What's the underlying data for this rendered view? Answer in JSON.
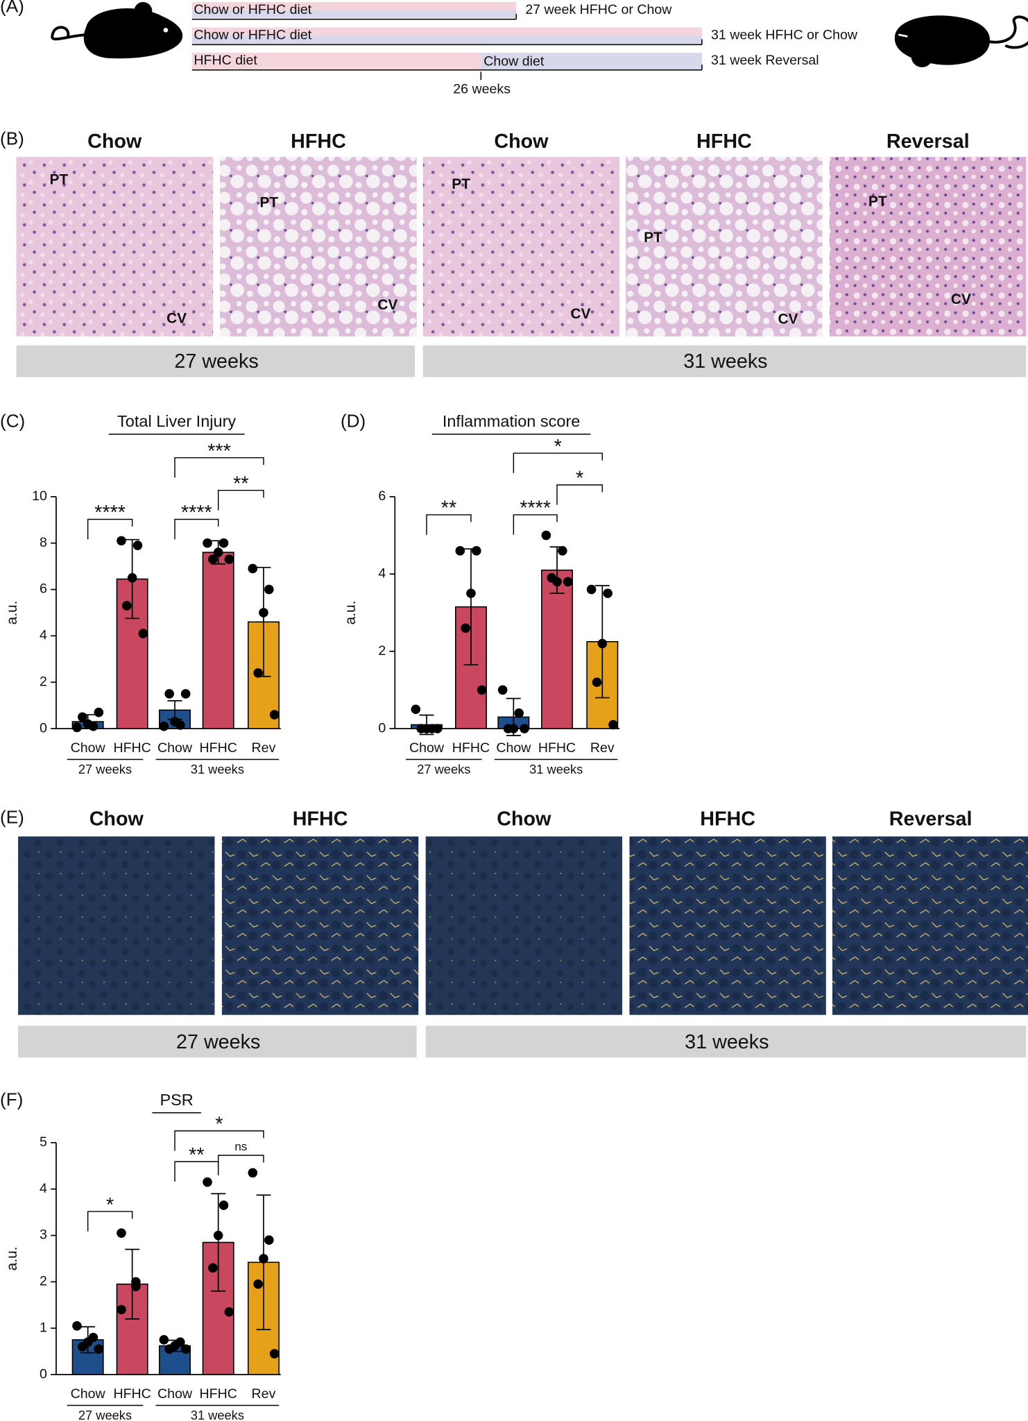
{
  "panel_labels": [
    "(A)",
    "(B)",
    "(C)",
    "(D)",
    "(E)",
    "(F)"
  ],
  "timeline": {
    "rows": [
      {
        "bar": "Chow or HFHC diet",
        "end": "27 week HFHC or Chow"
      },
      {
        "bar": "Chow or HFHC diet",
        "end": "31 week HFHC or Chow"
      },
      {
        "bar": "HFHC diet",
        "bar2": "Chow diet",
        "end": "31 week Reversal"
      }
    ],
    "marker": "26 weeks"
  },
  "histology_he": {
    "titles": [
      "Chow",
      "HFHC",
      "Chow",
      "HFHC",
      "Reversal"
    ],
    "labels": [
      [
        "PT",
        "CV"
      ],
      [
        "PT",
        "CV"
      ],
      [
        "PT",
        "CV"
      ],
      [
        "PT",
        "CV"
      ],
      [
        "PT",
        "CV"
      ]
    ],
    "groups": [
      "27 weeks",
      "31 weeks"
    ]
  },
  "histology_psr": {
    "titles": [
      "Chow",
      "HFHC",
      "Chow",
      "HFHC",
      "Reversal"
    ],
    "groups": [
      "27 weeks",
      "31 weeks"
    ]
  },
  "chart_data": [
    {
      "type": "bar",
      "title": "Total Liver Injury",
      "ylabel": "a.u.",
      "categories": [
        "Chow",
        "HFHC",
        "Chow",
        "HFHC",
        "Rev"
      ],
      "groups": [
        "27 weeks",
        "31 weeks"
      ],
      "colors": [
        "#1f4e8c",
        "#c9475f",
        "#1f4e8c",
        "#c9475f",
        "#e6a11a"
      ],
      "values": [
        0.3,
        6.45,
        0.8,
        7.6,
        4.6
      ],
      "errors": [
        0.3,
        1.7,
        0.4,
        0.5,
        2.35
      ],
      "points": [
        [
          0.05,
          0.1,
          0.2,
          0.5,
          0.7
        ],
        [
          8.1,
          7.9,
          6.5,
          5.3,
          4.1
        ],
        [
          0.1,
          0.15,
          0.3,
          1.5,
          1.5
        ],
        [
          8.0,
          8.0,
          7.6,
          7.3,
          7.3
        ],
        [
          6.9,
          6.0,
          5.0,
          2.4,
          0.6
        ]
      ],
      "ylim": [
        0,
        10
      ],
      "yticks": [
        0,
        2,
        4,
        6,
        8,
        10
      ],
      "annotations": [
        "****",
        "***",
        "**",
        "****"
      ]
    },
    {
      "type": "bar",
      "title": "Inflammation score",
      "ylabel": "a.u.",
      "categories": [
        "Chow",
        "HFHC",
        "Chow",
        "HFHC",
        "Rev"
      ],
      "groups": [
        "27 weeks",
        "31 weeks"
      ],
      "colors": [
        "#1f4e8c",
        "#c9475f",
        "#1f4e8c",
        "#c9475f",
        "#e6a11a"
      ],
      "values": [
        0.1,
        3.15,
        0.3,
        4.1,
        2.25
      ],
      "errors": [
        0.25,
        1.5,
        0.48,
        0.6,
        1.45
      ],
      "points": [
        [
          0.5,
          0,
          0,
          0,
          0
        ],
        [
          4.6,
          4.6,
          3.5,
          2.6,
          1.0
        ],
        [
          1.0,
          0.4,
          0,
          0,
          0
        ],
        [
          5.0,
          4.6,
          3.8,
          3.9,
          3.8
        ],
        [
          3.6,
          3.5,
          2.2,
          1.2,
          0.1
        ]
      ],
      "ylim": [
        0,
        6
      ],
      "yticks": [
        0,
        2,
        4,
        6
      ],
      "annotations": [
        "**",
        "*",
        "*",
        "****"
      ]
    },
    {
      "type": "bar",
      "title": "PSR",
      "ylabel": "a.u.",
      "categories": [
        "Chow",
        "HFHC",
        "Chow",
        "HFHC",
        "Rev"
      ],
      "groups": [
        "27 weeks",
        "31 weeks"
      ],
      "colors": [
        "#1f4e8c",
        "#c9475f",
        "#1f4e8c",
        "#c9475f",
        "#e6a11a"
      ],
      "values": [
        0.75,
        1.95,
        0.62,
        2.85,
        2.42
      ],
      "errors": [
        0.28,
        0.75,
        0.12,
        1.05,
        1.45
      ],
      "points": [
        [
          1.05,
          0.8,
          0.7,
          0.6,
          0.55
        ],
        [
          3.05,
          2.0,
          1.9,
          1.4
        ],
        [
          0.75,
          0.7,
          0.62,
          0.55,
          0.55
        ],
        [
          4.15,
          3.65,
          3.0,
          2.3,
          1.35
        ],
        [
          4.35,
          2.9,
          2.5,
          1.95,
          0.45
        ]
      ],
      "ylim": [
        0,
        5
      ],
      "yticks": [
        0,
        1,
        2,
        3,
        4,
        5
      ],
      "annotations": [
        "*",
        "*",
        "**",
        "ns"
      ]
    }
  ]
}
